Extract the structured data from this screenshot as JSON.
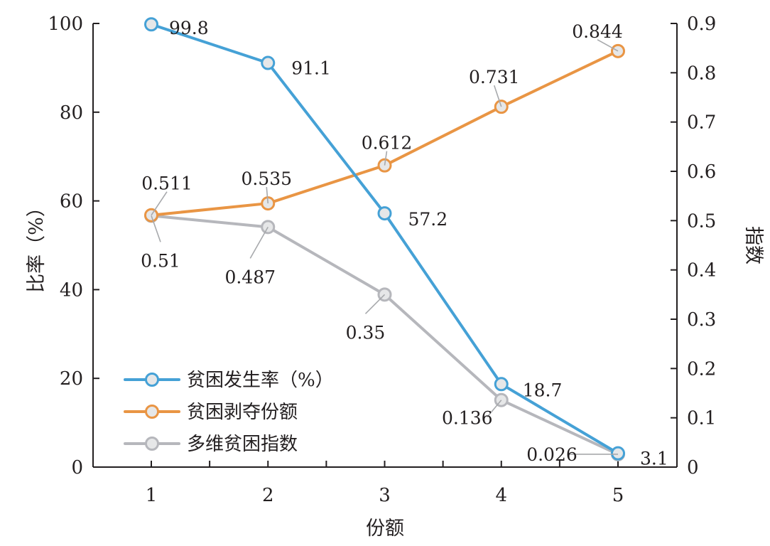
{
  "chart_data": {
    "type": "line",
    "title": "",
    "xlabel": "份额",
    "ylabel_left": "比率（%）",
    "ylabel_right": "指数",
    "categories": [
      "1",
      "2",
      "3",
      "4",
      "5"
    ],
    "y_left_lim": [
      0,
      100
    ],
    "y_left_ticks": [
      "0",
      "20",
      "40",
      "60",
      "80",
      "100"
    ],
    "y_right_lim": [
      0,
      0.9
    ],
    "y_right_ticks": [
      "0",
      "0.1",
      "0.2",
      "0.3",
      "0.4",
      "0.5",
      "0.6",
      "0.7",
      "0.8",
      "0.9"
    ],
    "grid": false,
    "legend_position": "bottom-left",
    "series": [
      {
        "name": "贫困发生率（%）",
        "axis": "left",
        "color": "#45a1d6",
        "values": [
          99.8,
          91.1,
          57.2,
          18.7,
          3.1
        ],
        "labels": [
          "99.8",
          "91.1",
          "57.2",
          "18.7",
          "3.1"
        ]
      },
      {
        "name": "贫困剥夺份额",
        "axis": "right",
        "color": "#e99544",
        "values": [
          0.511,
          0.535,
          0.612,
          0.731,
          0.844
        ],
        "labels": [
          "0.511",
          "0.535",
          "0.612",
          "0.731",
          "0.844"
        ]
      },
      {
        "name": "多维贫困指数",
        "axis": "right",
        "color": "#b6b7bc",
        "values": [
          0.51,
          0.487,
          0.35,
          0.136,
          0.026
        ],
        "labels": [
          "0.51",
          "0.487",
          "0.35",
          "0.136",
          "0.026"
        ]
      }
    ]
  }
}
